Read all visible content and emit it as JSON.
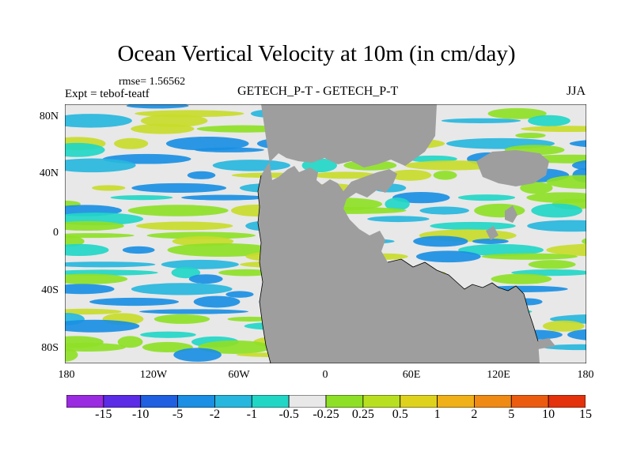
{
  "title": "Ocean Vertical Velocity at 10m (in cm/day)",
  "rmse_label": "rmse= 1.56562",
  "experiment_label": "Expt = tebof-teatf",
  "center_label": "GETECH_P-T - GETECH_P-T",
  "season_label": "JJA",
  "latitude_ticks": [
    "80N",
    "40N",
    "0",
    "40S",
    "80S"
  ],
  "longitude_ticks": [
    "180",
    "120W",
    "60W",
    "0",
    "60E",
    "120E",
    "180"
  ],
  "colorbar": {
    "colors": [
      "#9a2be0",
      "#5b2be5",
      "#1f5fe0",
      "#1a8fe3",
      "#27b6dd",
      "#22d6c6",
      "#e8e8e8",
      "#8ee026",
      "#b8e020",
      "#dfd21d",
      "#f0b018",
      "#ef8a14",
      "#ec5c10",
      "#e4320c"
    ],
    "labels": [
      "-15",
      "-10",
      "-5",
      "-2",
      "-1",
      "-0.5",
      "-0.25",
      "0.25",
      "0.5",
      "1",
      "2",
      "5",
      "10",
      "15"
    ]
  },
  "map_colors": {
    "land": "#9e9e9e",
    "ocean_neutral": "#e8e8e8",
    "pos_light": "#8ee026",
    "pos_mid": "#c8db2a",
    "neg_light": "#27b6dd",
    "neg_mid": "#22d6c6",
    "neg_dark": "#1a8fe3"
  }
}
